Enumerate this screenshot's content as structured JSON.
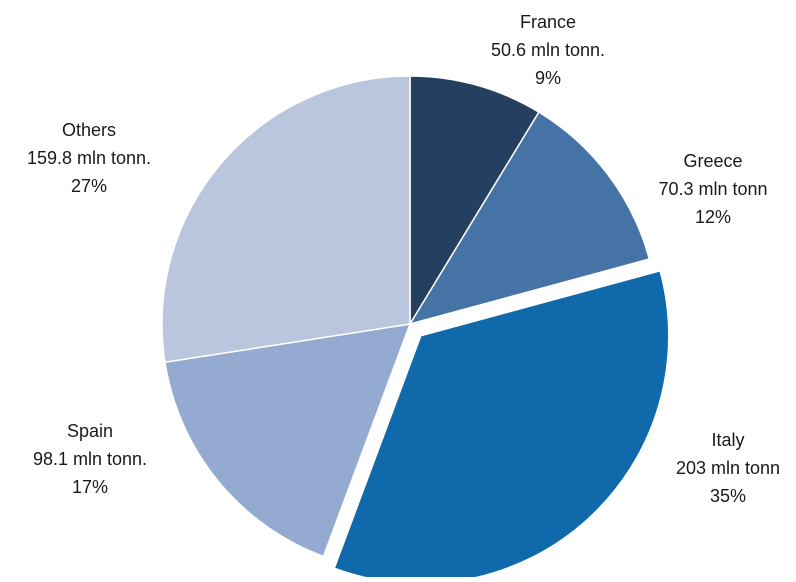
{
  "chart_data": {
    "type": "pie",
    "start_angle_deg": 0,
    "direction": "clockwise",
    "exploded": [
      "Italy"
    ],
    "slices": [
      {
        "label": "France",
        "value_text": "50.6 mln tonn.",
        "percent_text": "9%",
        "value": 50.6,
        "color": "#253f60"
      },
      {
        "label": "Greece",
        "value_text": "70.3 mln tonn",
        "percent_text": "12%",
        "value": 70.3,
        "color": "#4673a6"
      },
      {
        "label": "Italy",
        "value_text": "203 mln tonn",
        "percent_text": "35%",
        "value": 203,
        "color": "#0f69ab"
      },
      {
        "label": "Spain",
        "value_text": "98.1 mln tonn.",
        "percent_text": "17%",
        "value": 98.1,
        "color": "#95aad1"
      },
      {
        "label": "Others",
        "value_text": "159.8 mln tonn.",
        "percent_text": "27%",
        "value": 159.8,
        "color": "#b9c6de"
      }
    ]
  }
}
